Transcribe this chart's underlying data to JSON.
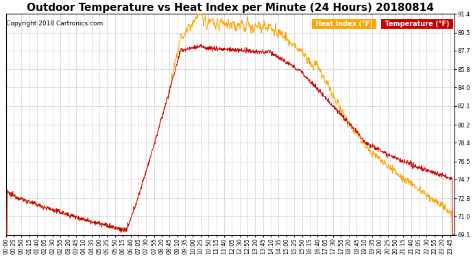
{
  "title": "Outdoor Temperature vs Heat Index per Minute (24 Hours) 20180814",
  "copyright": "Copyright 2018 Cartronics.com",
  "legend_heat": "Heat Index (°F)",
  "legend_temp": "Temperature (°F)",
  "heat_color": "#FFA500",
  "temp_color": "#CC0000",
  "background_color": "#ffffff",
  "plot_bg_color": "#ffffff",
  "grid_color": "#bbbbbb",
  "ylim_min": 69.1,
  "ylim_max": 91.4,
  "yticks": [
    69.1,
    71.0,
    72.8,
    74.7,
    76.5,
    78.4,
    80.2,
    82.1,
    84.0,
    85.8,
    87.7,
    89.5,
    91.4
  ],
  "title_fontsize": 11,
  "copyright_fontsize": 6.5,
  "axis_fontsize": 6,
  "legend_fontsize": 7,
  "figwidth": 6.9,
  "figheight": 3.75,
  "dpi": 100
}
